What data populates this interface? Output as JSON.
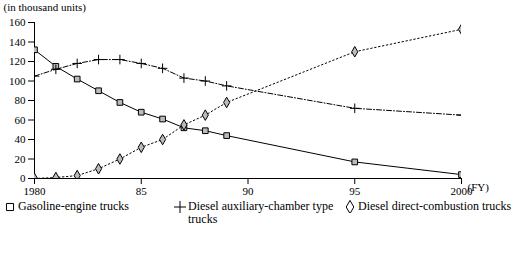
{
  "chart_data": {
    "type": "line",
    "ylabel": "(in thousand units)",
    "xlabel": "(FY)",
    "x": [
      1980,
      1981,
      1982,
      1983,
      1984,
      1985,
      1986,
      1987,
      1988,
      1989,
      1995,
      2000
    ],
    "xlim": [
      1980,
      2000
    ],
    "xticks": [
      1980,
      {
        "value": 1985,
        "label": "85"
      },
      {
        "value": 1990,
        "label": "90"
      },
      {
        "value": 1995,
        "label": "95"
      },
      2000
    ],
    "ylim": [
      0,
      160
    ],
    "yticks": [
      0,
      20,
      40,
      60,
      80,
      100,
      120,
      140,
      160
    ],
    "grid": false,
    "legend": "bottom",
    "series": [
      {
        "name": "Gasoline-engine trucks",
        "color": "#000000",
        "marker": "square",
        "line_style": "solid",
        "values": [
          132,
          115,
          102,
          90,
          78,
          68,
          61,
          52,
          49,
          44,
          17,
          4
        ]
      },
      {
        "name": "Diesel auxiliary-chamber type trucks",
        "color": "#000000",
        "marker": "plus",
        "line_style": "dashdot",
        "values": [
          105,
          112,
          118,
          122,
          122,
          118,
          113,
          103,
          100,
          95,
          72,
          65
        ]
      },
      {
        "name": "Diesel direct-combustion trucks",
        "color": "#000000",
        "marker": "diamond",
        "line_style": "dotted",
        "values": [
          0,
          1,
          3,
          10,
          20,
          32,
          40,
          55,
          65,
          78,
          130,
          153
        ]
      }
    ]
  }
}
